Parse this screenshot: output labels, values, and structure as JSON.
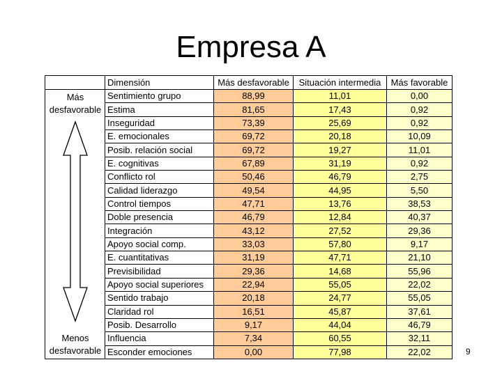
{
  "title": "Empresa A",
  "page_number": "9",
  "table": {
    "headers": {
      "dimension": "Dimensión",
      "mas_desfavorable": "Más desfavorable",
      "situacion_intermedia": "Situación intermedia",
      "mas_favorable": "Más favorable"
    },
    "side_top": [
      "Más",
      "desfavorable"
    ],
    "side_bottom": [
      "Menos",
      "desfavorable"
    ],
    "rows": [
      {
        "dim": "Sentimiento grupo",
        "mas": "88,99",
        "sit": "11,01",
        "fav": "0,00"
      },
      {
        "dim": "Estima",
        "mas": "81,65",
        "sit": "17,43",
        "fav": "0,92"
      },
      {
        "dim": "Inseguridad",
        "mas": "73,39",
        "sit": "25,69",
        "fav": "0,92"
      },
      {
        "dim": "E. emocionales",
        "mas": "69,72",
        "sit": "20,18",
        "fav": "10,09"
      },
      {
        "dim": "Posib. relación social",
        "mas": "69,72",
        "sit": "19,27",
        "fav": "11,01"
      },
      {
        "dim": "E. cognitivas",
        "mas": "67,89",
        "sit": "31,19",
        "fav": "0,92"
      },
      {
        "dim": "Conflicto rol",
        "mas": "50,46",
        "sit": "46,79",
        "fav": "2,75"
      },
      {
        "dim": "Calidad liderazgo",
        "mas": "49,54",
        "sit": "44,95",
        "fav": "5,50"
      },
      {
        "dim": "Control tiempos",
        "mas": "47,71",
        "sit": "13,76",
        "fav": "38,53"
      },
      {
        "dim": "Doble presencia",
        "mas": "46,79",
        "sit": "12,84",
        "fav": "40,37"
      },
      {
        "dim": "Integración",
        "mas": "43,12",
        "sit": "27,52",
        "fav": "29,36"
      },
      {
        "dim": "Apoyo social comp.",
        "mas": "33,03",
        "sit": "57,80",
        "fav": "9,17"
      },
      {
        "dim": "E. cuantitativas",
        "mas": "31,19",
        "sit": "47,71",
        "fav": "21,10"
      },
      {
        "dim": "Previsibilidad",
        "mas": "29,36",
        "sit": "14,68",
        "fav": "55,96"
      },
      {
        "dim": "Apoyo social superiores",
        "mas": "22,94",
        "sit": "55,05",
        "fav": "22,02"
      },
      {
        "dim": "Sentido trabajo",
        "mas": "20,18",
        "sit": "24,77",
        "fav": "55,05"
      },
      {
        "dim": "Claridad rol",
        "mas": "16,51",
        "sit": "45,87",
        "fav": "37,61"
      },
      {
        "dim": "Posib. Desarrollo",
        "mas": "9,17",
        "sit": "44,04",
        "fav": "46,79"
      },
      {
        "dim": "Influencia",
        "mas": "7,34",
        "sit": "60,55",
        "fav": "32,11"
      },
      {
        "dim": "Esconder emociones",
        "mas": "0,00",
        "sit": "77,98",
        "fav": "22,02"
      }
    ]
  }
}
